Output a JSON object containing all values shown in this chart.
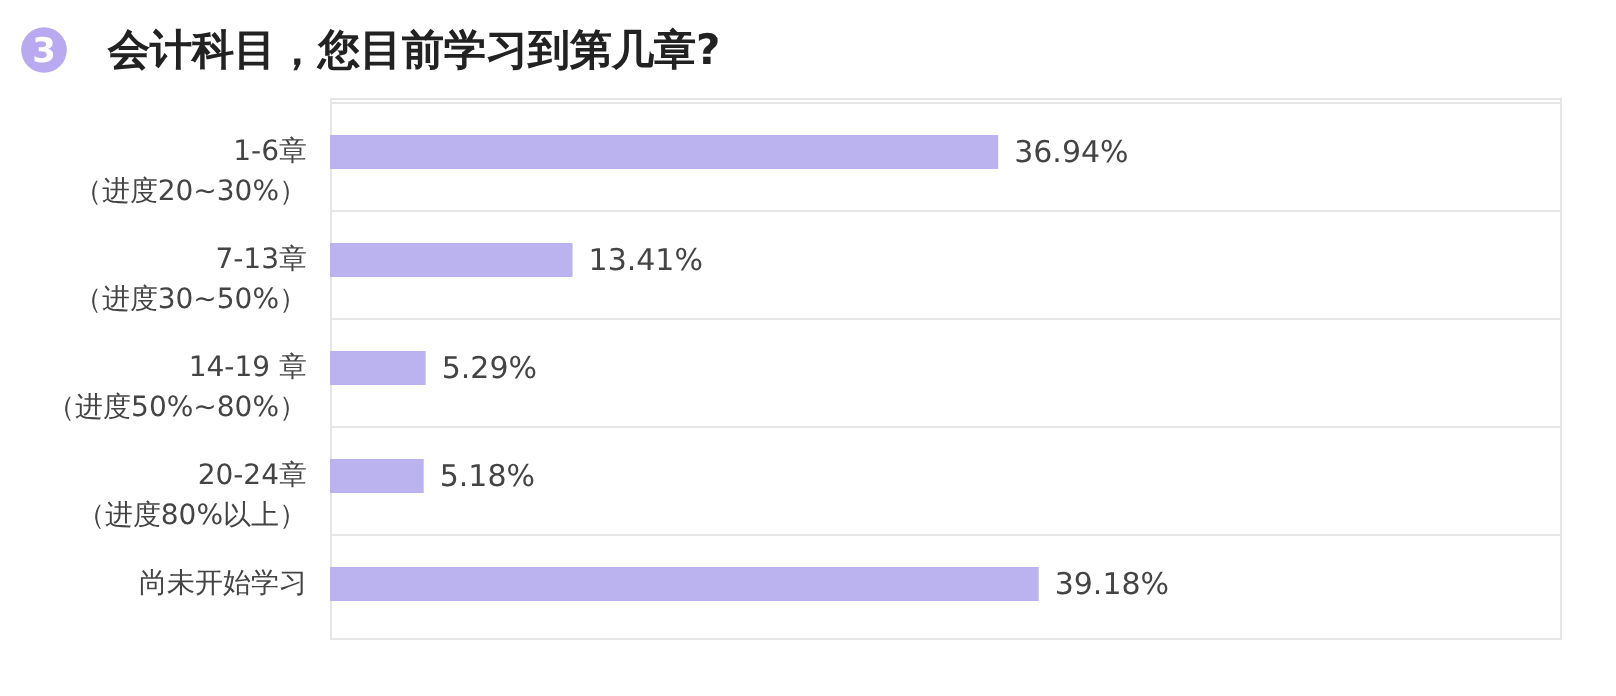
{
  "chart_data": {
    "type": "bar",
    "orientation": "horizontal",
    "title": "会计科目，您目前学习到第几章?",
    "annotations": [
      "3"
    ],
    "categories": [
      "1-6章（进度20~30%）",
      "7-13章（进度30~50%）",
      "14-19 章（进度50%~80%）",
      "20-24章（进度80%以上）",
      "尚未开始学习"
    ],
    "values": [
      36.94,
      13.41,
      5.29,
      5.18,
      39.18
    ],
    "value_labels": [
      "36.94%",
      "13.41%",
      "5.29%",
      "5.18%",
      "39.18%"
    ],
    "color": "#bbb2f0",
    "xlim": [
      0,
      68
    ],
    "grid": "y",
    "tick_labels": "y"
  }
}
